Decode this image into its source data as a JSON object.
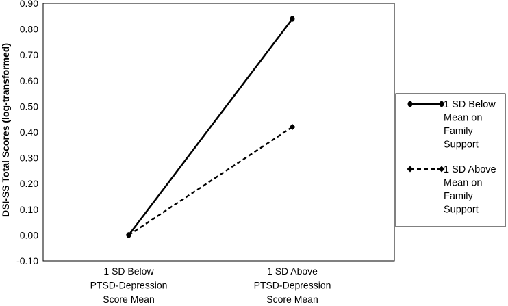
{
  "chart_data": {
    "type": "line",
    "title": "",
    "xlabel": "",
    "ylabel": "DSI-SS Total Scores (log-transformed)",
    "ylim": [
      -0.1,
      0.9
    ],
    "ytick_labels": [
      "-0.10",
      "0.00",
      "0.10",
      "0.20",
      "0.30",
      "0.40",
      "0.50",
      "0.60",
      "0.70",
      "0.80",
      "0.90"
    ],
    "categories": [
      [
        "1 SD Below",
        "PTSD-Depression",
        "Score Mean"
      ],
      [
        "1 SD Above",
        "PTSD-Depression",
        "Score Mean"
      ]
    ],
    "series": [
      {
        "name": "1 SD Below Mean on Family Support",
        "legend_lines": [
          "1 SD Below",
          "Mean on",
          "Family",
          "Support"
        ],
        "values": [
          0.0,
          0.84
        ],
        "line_style": "solid",
        "marker": "circle",
        "color": "#000000"
      },
      {
        "name": "1 SD Above Mean on Family Support",
        "legend_lines": [
          "1 SD Above",
          "Mean on",
          "Family",
          "Support"
        ],
        "values": [
          0.0,
          0.42
        ],
        "line_style": "dashed",
        "marker": "diamond",
        "color": "#000000"
      }
    ],
    "legend_position": "right",
    "grid": false
  }
}
